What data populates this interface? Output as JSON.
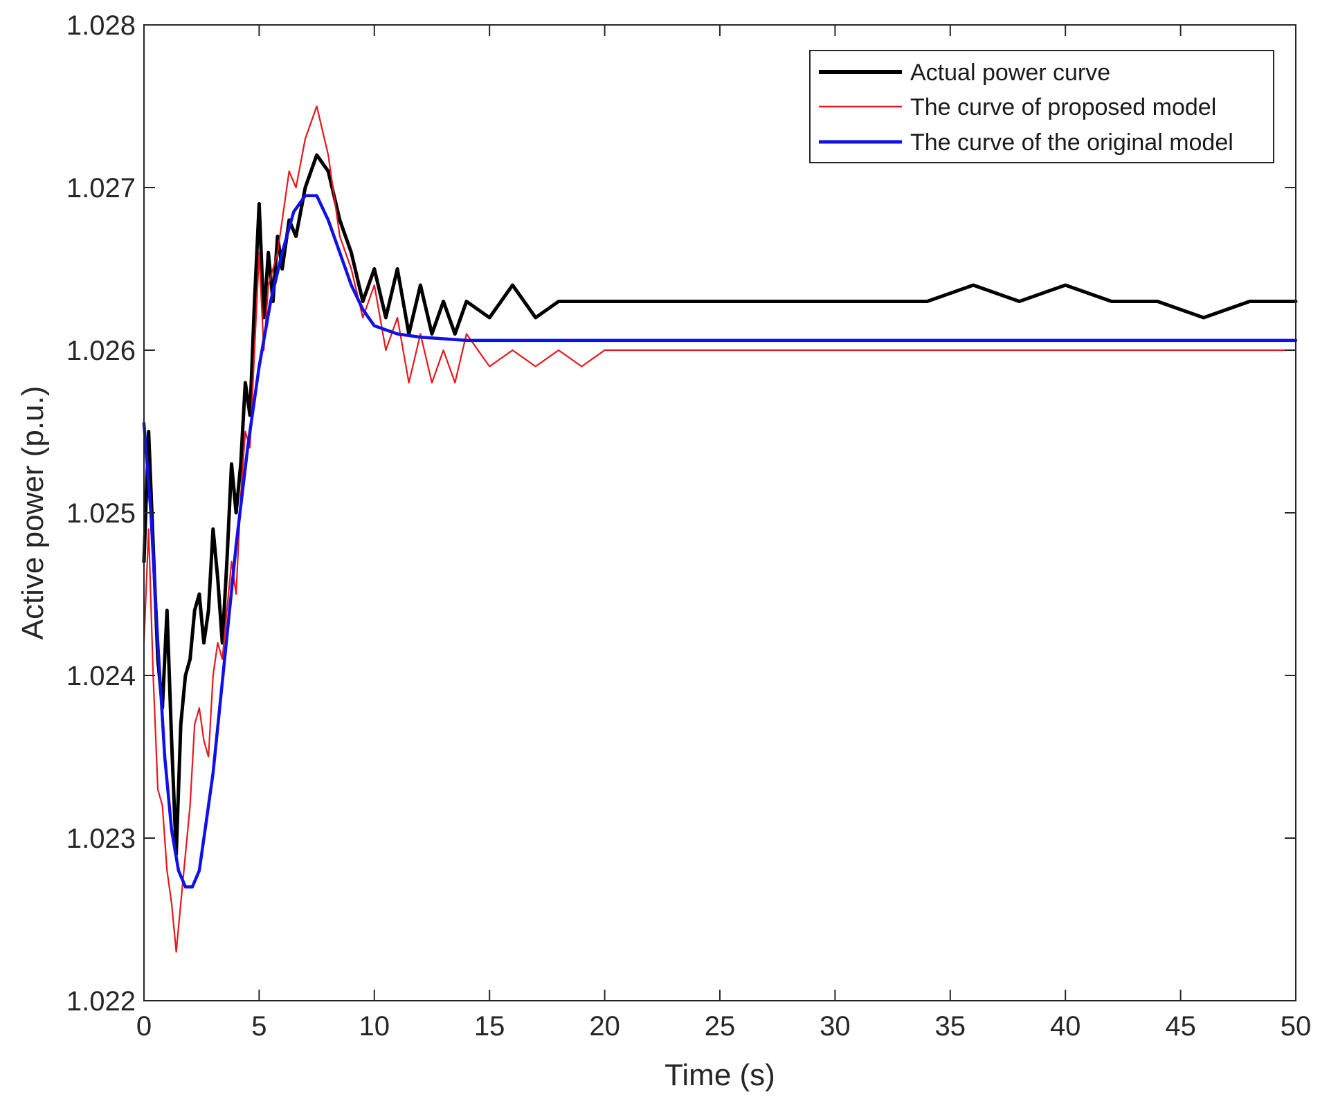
{
  "chart_data": {
    "type": "line",
    "title": "",
    "xlabel": "Time (s)",
    "ylabel": "Active power (p.u.)",
    "xlim": [
      0,
      50
    ],
    "ylim": [
      1.022,
      1.028
    ],
    "xticks": [
      0,
      5,
      10,
      15,
      20,
      25,
      30,
      35,
      40,
      45,
      50
    ],
    "xtick_labels": [
      "0",
      "5",
      "10",
      "15",
      "20",
      "25",
      "30",
      "35",
      "40",
      "45",
      "50"
    ],
    "yticks": [
      1.022,
      1.023,
      1.024,
      1.025,
      1.026,
      1.027,
      1.028
    ],
    "ytick_labels": [
      "1.022",
      "1.023",
      "1.024",
      "1.025",
      "1.026",
      "1.027",
      "1.028"
    ],
    "grid": false,
    "legend_position": "top-right",
    "series": [
      {
        "name": "Actual power curve",
        "color": "#000000",
        "x": [
          0,
          0.2,
          0.4,
          0.6,
          0.8,
          1.0,
          1.2,
          1.4,
          1.6,
          1.8,
          2.0,
          2.2,
          2.4,
          2.6,
          2.8,
          3.0,
          3.2,
          3.4,
          3.6,
          3.8,
          4.0,
          4.2,
          4.4,
          4.6,
          4.8,
          5.0,
          5.2,
          5.4,
          5.6,
          5.8,
          6.0,
          6.3,
          6.6,
          7.0,
          7.5,
          8.0,
          8.5,
          9.0,
          9.5,
          10.0,
          10.5,
          11.0,
          11.5,
          12.0,
          12.5,
          13.0,
          13.5,
          14.0,
          15.0,
          16.0,
          17.0,
          18.0,
          19.0,
          20.0,
          22.0,
          24.0,
          26.0,
          28.0,
          30.0,
          32.0,
          34.0,
          36.0,
          38.0,
          40.0,
          42.0,
          44.0,
          46.0,
          48.0,
          50.0
        ],
        "values": [
          1.0247,
          1.0255,
          1.0248,
          1.0241,
          1.0238,
          1.0244,
          1.0236,
          1.0229,
          1.0237,
          1.024,
          1.0241,
          1.0244,
          1.0245,
          1.0242,
          1.0244,
          1.0249,
          1.0246,
          1.0242,
          1.0247,
          1.0253,
          1.025,
          1.0253,
          1.0258,
          1.0256,
          1.0263,
          1.0269,
          1.0262,
          1.0266,
          1.0263,
          1.0267,
          1.0265,
          1.0268,
          1.0267,
          1.027,
          1.0272,
          1.0271,
          1.0268,
          1.0266,
          1.0263,
          1.0265,
          1.0262,
          1.0265,
          1.0261,
          1.0264,
          1.0261,
          1.0263,
          1.0261,
          1.0263,
          1.0262,
          1.0264,
          1.0262,
          1.0263,
          1.0263,
          1.0263,
          1.0263,
          1.0263,
          1.0263,
          1.0263,
          1.0263,
          1.0263,
          1.0263,
          1.0264,
          1.0263,
          1.0264,
          1.0263,
          1.0263,
          1.0262,
          1.0263,
          1.0263
        ]
      },
      {
        "name": "The curve of proposed model",
        "color": "#e8161b",
        "x": [
          0,
          0.2,
          0.4,
          0.6,
          0.8,
          1.0,
          1.2,
          1.4,
          1.6,
          1.8,
          2.0,
          2.2,
          2.4,
          2.6,
          2.8,
          3.0,
          3.2,
          3.4,
          3.6,
          3.8,
          4.0,
          4.2,
          4.4,
          4.6,
          4.8,
          5.0,
          5.2,
          5.4,
          5.6,
          5.8,
          6.0,
          6.3,
          6.6,
          7.0,
          7.5,
          8.0,
          8.5,
          9.0,
          9.5,
          10.0,
          10.5,
          11.0,
          11.5,
          12.0,
          12.5,
          13.0,
          13.5,
          14.0,
          15.0,
          16.0,
          17.0,
          18.0,
          19.0,
          20.0,
          22.0,
          24.0,
          26.0,
          28.0,
          30.0,
          32.0,
          34.0,
          36.0,
          38.0,
          40.0,
          42.0,
          44.0,
          46.0,
          48.0,
          50.0
        ],
        "values": [
          1.0242,
          1.0249,
          1.024,
          1.0233,
          1.0232,
          1.0228,
          1.0226,
          1.0223,
          1.0226,
          1.0229,
          1.0232,
          1.0237,
          1.0238,
          1.0236,
          1.0235,
          1.024,
          1.0242,
          1.0241,
          1.0244,
          1.0247,
          1.0245,
          1.0251,
          1.0255,
          1.0254,
          1.026,
          1.0266,
          1.026,
          1.0264,
          1.0265,
          1.0266,
          1.0268,
          1.0271,
          1.027,
          1.0273,
          1.0275,
          1.0272,
          1.0267,
          1.0265,
          1.0262,
          1.0264,
          1.026,
          1.0262,
          1.0258,
          1.0261,
          1.0258,
          1.026,
          1.0258,
          1.0261,
          1.0259,
          1.026,
          1.0259,
          1.026,
          1.0259,
          1.026,
          1.026,
          1.026,
          1.026,
          1.026,
          1.026,
          1.026,
          1.026,
          1.026,
          1.026,
          1.026,
          1.026,
          1.026,
          1.026,
          1.026,
          1.026
        ]
      },
      {
        "name": "The curve of the original model",
        "color": "#1010e8",
        "x": [
          0,
          0.3,
          0.6,
          0.9,
          1.2,
          1.5,
          1.8,
          2.1,
          2.4,
          2.7,
          3.0,
          3.5,
          4.0,
          4.5,
          5.0,
          5.5,
          6.0,
          6.5,
          7.0,
          7.5,
          8.0,
          8.5,
          9.0,
          9.5,
          10.0,
          11.0,
          12.0,
          13.0,
          14.0,
          16.0,
          20.0,
          25.0,
          30.0,
          35.0,
          40.0,
          45.0,
          50.0
        ],
        "values": [
          1.02555,
          1.025,
          1.0242,
          1.0235,
          1.02305,
          1.0228,
          1.0227,
          1.0227,
          1.0228,
          1.0231,
          1.0234,
          1.0241,
          1.0248,
          1.0254,
          1.0259,
          1.0263,
          1.0266,
          1.02685,
          1.02695,
          1.02695,
          1.0268,
          1.0266,
          1.0264,
          1.02625,
          1.02615,
          1.0261,
          1.02608,
          1.02607,
          1.02606,
          1.02606,
          1.02606,
          1.02606,
          1.02606,
          1.02606,
          1.02606,
          1.02606,
          1.02606
        ]
      }
    ]
  }
}
